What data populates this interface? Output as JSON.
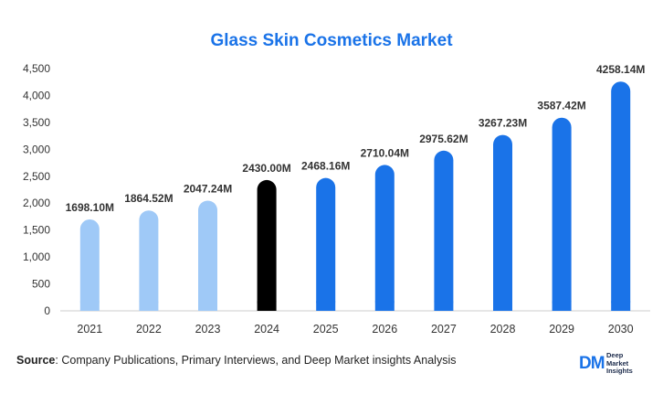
{
  "chart_data": {
    "type": "bar",
    "title": "Glass Skin Cosmetics Market",
    "categories": [
      "2021",
      "2022",
      "2023",
      "2024",
      "2025",
      "2026",
      "2027",
      "2028",
      "2029",
      "2030"
    ],
    "values": [
      1698.1,
      1864.52,
      2047.24,
      2430.0,
      2468.16,
      2710.04,
      2975.62,
      3267.23,
      3587.42,
      4258.14
    ],
    "data_labels": [
      "1698.10M",
      "1864.52M",
      "2047.24M",
      "2430.00M",
      "2468.16M",
      "2710.04M",
      "2975.62M",
      "3267.23M",
      "3587.42M",
      "4258.14M"
    ],
    "bar_colors": [
      "#9fc9f7",
      "#9fc9f7",
      "#9fc9f7",
      "#000000",
      "#1a73e8",
      "#1a73e8",
      "#1a73e8",
      "#1a73e8",
      "#1a73e8",
      "#1a73e8"
    ],
    "y_ticks": [
      "0",
      "500",
      "1,000",
      "1,500",
      "2,000",
      "2,500",
      "3,000",
      "3,500",
      "4,000",
      "4,500"
    ],
    "ylim": [
      0,
      4500
    ],
    "xlabel": "",
    "ylabel": "",
    "grid": false,
    "legend": "none"
  },
  "source": {
    "label": "Source",
    "text": ": Company Publications, Primary Interviews, and Deep Market insights Analysis"
  },
  "logo": {
    "mark": "DM",
    "line1": "Deep",
    "line2": "Market",
    "line3": "Insights"
  }
}
